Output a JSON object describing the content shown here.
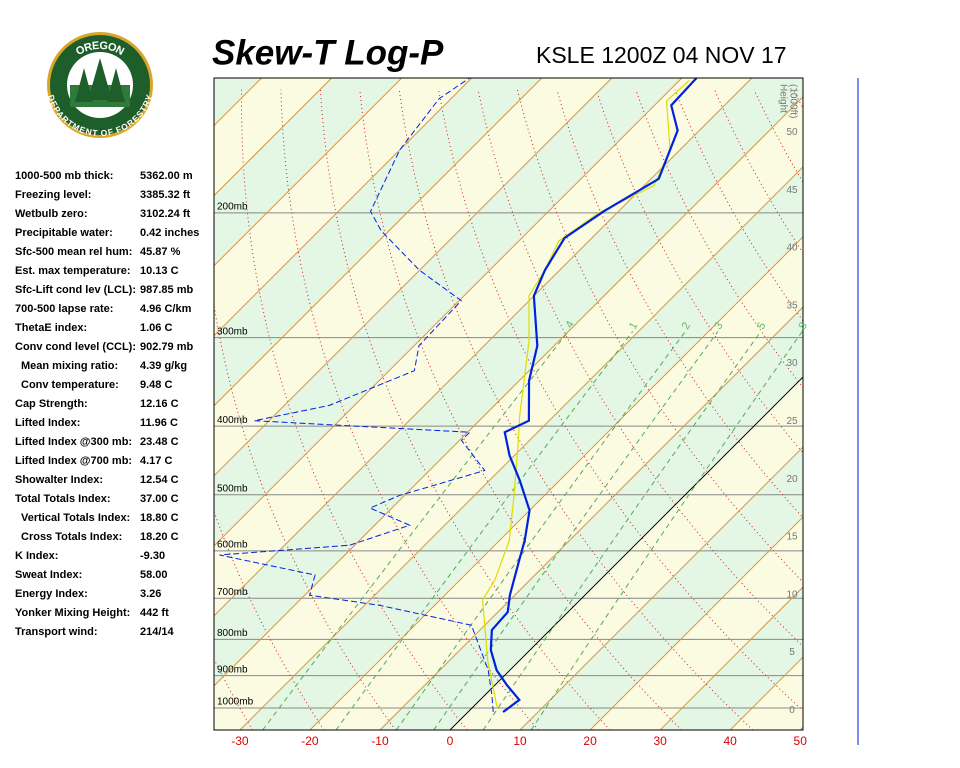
{
  "header": {
    "title": "Skew-T Log-P",
    "station": "KSLE 1200Z 04 NOV 17"
  },
  "logo": {
    "top": "OREGON",
    "bottom": "DEPARTMENT OF FORESTRY"
  },
  "stats": [
    {
      "label": "1000-500 mb thick:",
      "value": "5362.00 m"
    },
    {
      "label": "Freezing level:",
      "value": "3385.32 ft"
    },
    {
      "label": "Wetbulb zero:",
      "value": "3102.24 ft"
    },
    {
      "label": "Precipitable water:",
      "value": "0.42 inches"
    },
    {
      "label": "Sfc-500 mean rel hum:",
      "value": "45.87 %"
    },
    {
      "label": "Est. max temperature:",
      "value": "10.13 C"
    },
    {
      "label": "Sfc-Lift cond lev (LCL):",
      "value": "987.85 mb"
    },
    {
      "label": "700-500 lapse rate:",
      "value": "4.96 C/km"
    },
    {
      "label": "ThetaE index:",
      "value": "1.06 C"
    },
    {
      "label": "Conv cond level (CCL):",
      "value": "902.79 mb"
    },
    {
      "label": "Mean mixing ratio:",
      "value": "4.39 g/kg"
    },
    {
      "label": "Conv temperature:",
      "value": "9.48 C"
    },
    {
      "label": "Cap Strength:",
      "value": "12.16 C"
    },
    {
      "label": "Lifted Index:",
      "value": "11.96 C"
    },
    {
      "label": "Lifted Index @300 mb:",
      "value": "23.48 C"
    },
    {
      "label": "Lifted Index @700 mb:",
      "value": "4.17 C"
    },
    {
      "label": "Showalter Index:",
      "value": "12.54 C"
    },
    {
      "label": "Total Totals Index:",
      "value": "37.00 C"
    },
    {
      "label": "Vertical Totals Index:",
      "value": "18.80 C"
    },
    {
      "label": "Cross Totals Index:",
      "value": "18.20 C"
    },
    {
      "label": "K Index:",
      "value": "-9.30"
    },
    {
      "label": "Sweat Index:",
      "value": "58.00"
    },
    {
      "label": "Energy Index:",
      "value": "3.26"
    },
    {
      "label": "Yonker Mixing Height:",
      "value": "442 ft"
    },
    {
      "label": "Transport wind:",
      "value": "214/14"
    }
  ],
  "chart_data": {
    "type": "skewt",
    "xlim": [
      -33.7,
      50.4
    ],
    "xticks": [
      -30,
      -20,
      -10,
      0,
      10,
      20,
      30,
      40,
      50
    ],
    "ylim": [
      1074,
      129
    ],
    "log_y": true,
    "yticks": [
      {
        "value": 1000,
        "label": "1000mb"
      },
      {
        "value": 900,
        "label": "900mb"
      },
      {
        "value": 800,
        "label": "800mb"
      },
      {
        "value": 700,
        "label": "700mb"
      },
      {
        "value": 600,
        "label": "600mb"
      },
      {
        "value": 500,
        "label": "500mb"
      },
      {
        "value": 400,
        "label": "400mb"
      },
      {
        "value": 300,
        "label": "300mb"
      },
      {
        "value": 200,
        "label": "200mb"
      }
    ],
    "y2label": [
      "Height",
      "(1000ft)"
    ],
    "y2lim": [
      -1.7,
      54.7
    ],
    "y2ticks": [
      0,
      5,
      10,
      15,
      20,
      25,
      30,
      35,
      40,
      45,
      50
    ],
    "mixing_ratio_labels": [
      {
        "value": 0.4,
        "label": ".4"
      },
      {
        "value": 1,
        "label": "1"
      },
      {
        "value": 2,
        "label": "2"
      },
      {
        "value": 3,
        "label": "3"
      },
      {
        "value": 5,
        "label": "5"
      },
      {
        "value": 8,
        "label": "8"
      }
    ],
    "series": [
      {
        "color": "#dddd00",
        "style": "solid",
        "x": [
          3.6,
          -4.6,
          -13.9,
          -15.0,
          -18.6,
          -25.0,
          -31.6,
          -35.0,
          -39.3,
          -44.3,
          -50.7,
          -52.1,
          -54.3,
          -52.6,
          -48.6,
          -51.4,
          -58.9,
          -58.6
        ],
        "values": [
          1000,
          856,
          704,
          660,
          580,
          493,
          419,
          386,
          345,
          303,
          262,
          241,
          219,
          200,
          183,
          163,
          139,
          130
        ]
      },
      {
        "color": "#0022dd",
        "style": "dashed",
        "x": [
          3.6,
          1.0,
          -3.1,
          -11.9,
          -27.9,
          -39.3,
          -41.4,
          -57.9,
          -40.7,
          -35.0,
          -43.1,
          -40.7,
          -32.1,
          -39.7,
          -39.7,
          -72.1,
          -63.6,
          -56.4,
          -59.3,
          -59.7,
          -70.0,
          -81.1,
          -85.4,
          -90.0,
          -91.7,
          -90.3
        ],
        "values": [
          1013,
          959,
          884,
          764,
          716,
          693,
          649,
          608,
          589,
          552,
          522,
          501,
          462,
          419,
          408,
          393,
          374,
          334,
          308,
          266,
          241,
          212,
          199,
          163,
          138,
          129
        ]
      },
      {
        "color": "#0022dd",
        "style": "solid",
        "x": [
          5.0,
          5.6,
          1.7,
          -1.9,
          -5.6,
          -8.3,
          -8.6,
          -10.7,
          -14.7,
          -16.4,
          -20.0,
          -25.7,
          -30.7,
          -34.7,
          -32.9,
          -38.6,
          -42.4,
          -50.0,
          -52.1,
          -53.9,
          -52.1,
          -48.9,
          -53.1,
          -57.6,
          -57.9
        ],
        "values": [
          1013,
          974,
          928,
          884,
          828,
          776,
          732,
          693,
          612,
          580,
          526,
          477,
          440,
          408,
          393,
          345,
          308,
          262,
          241,
          217,
          199,
          179,
          153,
          141,
          129
        ]
      }
    ]
  }
}
